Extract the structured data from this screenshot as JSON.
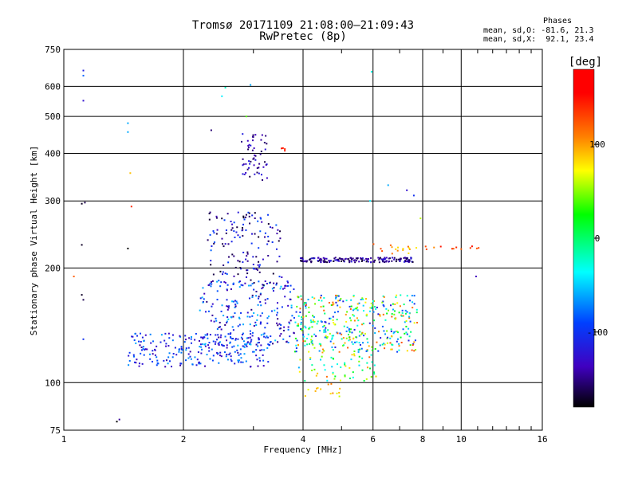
{
  "header": {
    "title_line1": "Tromsø 20171109 21:08:00–21:09:43",
    "title_line2": "RwPretec (8p)",
    "stats_title": "Phases",
    "stats_o": "mean, sd,O: -81.6, 21.3",
    "stats_x": "mean, sd,X:  92.1, 23.4"
  },
  "chart_data": {
    "type": "scatter",
    "xlabel": "Frequency [MHz]",
    "ylabel": "Stationary phase Virtual Height [km]",
    "xscale": "log",
    "yscale": "log",
    "xlim": [
      1,
      16
    ],
    "ylim": [
      75,
      750
    ],
    "xticks": [
      1,
      2,
      4,
      6,
      8,
      10,
      16
    ],
    "yticks": [
      75,
      100,
      200,
      300,
      400,
      500,
      600,
      750
    ],
    "colorbar": {
      "label": "[deg]",
      "range": [
        -180,
        180
      ],
      "ticks": [
        100,
        0,
        -100
      ]
    },
    "series": [
      {
        "clusters": [
          {
            "x": [
              1.45,
              3.3
            ],
            "y": [
              110,
              135
            ],
            "phase": [
              -140,
              -60
            ],
            "n": 240
          },
          {
            "x": [
              2.2,
              3.8
            ],
            "y": [
              125,
              185
            ],
            "phase": [
              -150,
              -50
            ],
            "n": 220
          },
          {
            "x": [
              2.3,
              3.6
            ],
            "y": [
              180,
              280
            ],
            "phase": [
              -170,
              -80
            ],
            "n": 150
          },
          {
            "x": [
              2.8,
              3.25
            ],
            "y": [
              340,
              450
            ],
            "phase": [
              -160,
              -110
            ],
            "n": 55
          },
          {
            "x": [
              3.9,
              7.6
            ],
            "y": [
              207,
              213
            ],
            "phase": [
              -170,
              -110
            ],
            "n": 170
          },
          {
            "x": [
              3.8,
              7.8
            ],
            "y": [
              120,
              170
            ],
            "phase": [
              -120,
              130
            ],
            "n": 380
          },
          {
            "x": [
              3.9,
              6.2
            ],
            "y": [
              100,
              120
            ],
            "phase": [
              -60,
              120
            ],
            "n": 60
          },
          {
            "x": [
              4.0,
              5.0
            ],
            "y": [
              90,
              100
            ],
            "phase": [
              60,
              120
            ],
            "n": 14
          },
          {
            "x": [
              6.0,
              7.8
            ],
            "y": [
              218,
              232
            ],
            "phase": [
              60,
              150
            ],
            "n": 16
          },
          {
            "x": [
              8.0,
              11.2
            ],
            "y": [
              222,
              228
            ],
            "phase": [
              100,
              150
            ],
            "n": 12
          },
          {
            "x": [
              3.5,
              3.6
            ],
            "y": [
              405,
              415
            ],
            "phase": [
              140,
              150
            ],
            "n": 4
          }
        ],
        "isolated_points": [
          {
            "x": 1.12,
            "y": 660,
            "phase": -110
          },
          {
            "x": 1.12,
            "y": 640,
            "phase": -80
          },
          {
            "x": 1.12,
            "y": 550,
            "phase": -120
          },
          {
            "x": 1.45,
            "y": 480,
            "phase": -60
          },
          {
            "x": 1.45,
            "y": 455,
            "phase": -60
          },
          {
            "x": 1.47,
            "y": 355,
            "phase": 90
          },
          {
            "x": 1.48,
            "y": 290,
            "phase": 140
          },
          {
            "x": 1.45,
            "y": 225,
            "phase": -180
          },
          {
            "x": 1.11,
            "y": 295,
            "phase": -170
          },
          {
            "x": 1.13,
            "y": 297,
            "phase": -160
          },
          {
            "x": 1.11,
            "y": 230,
            "phase": -170
          },
          {
            "x": 1.06,
            "y": 190,
            "phase": 120
          },
          {
            "x": 1.11,
            "y": 170,
            "phase": -170
          },
          {
            "x": 1.12,
            "y": 165,
            "phase": -160
          },
          {
            "x": 1.12,
            "y": 130,
            "phase": -100
          },
          {
            "x": 1.38,
            "y": 80,
            "phase": -140
          },
          {
            "x": 1.36,
            "y": 79,
            "phase": -180
          },
          {
            "x": 2.35,
            "y": 460,
            "phase": -150
          },
          {
            "x": 2.5,
            "y": 565,
            "phase": -40
          },
          {
            "x": 2.55,
            "y": 595,
            "phase": -20
          },
          {
            "x": 2.95,
            "y": 605,
            "phase": -60
          },
          {
            "x": 2.88,
            "y": 500,
            "phase": 40
          },
          {
            "x": 5.95,
            "y": 655,
            "phase": -30
          },
          {
            "x": 6.55,
            "y": 330,
            "phase": -60
          },
          {
            "x": 7.3,
            "y": 320,
            "phase": -120
          },
          {
            "x": 7.6,
            "y": 310,
            "phase": -100
          },
          {
            "x": 5.9,
            "y": 300,
            "phase": -40
          },
          {
            "x": 7.9,
            "y": 270,
            "phase": 60
          },
          {
            "x": 10.9,
            "y": 190,
            "phase": -130
          }
        ]
      }
    ]
  }
}
